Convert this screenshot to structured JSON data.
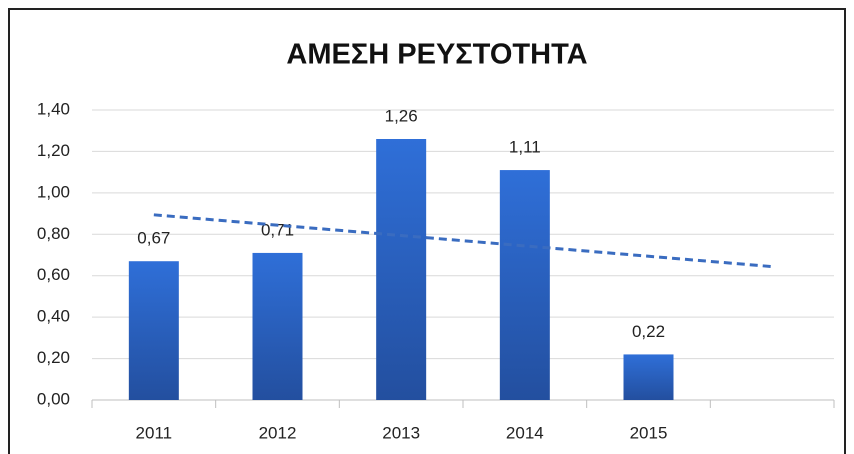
{
  "chart_data": {
    "type": "bar",
    "title": "ΑΜΕΣΗ ΡΕΥΣΤΟΤΗΤΑ",
    "categories": [
      "2011",
      "2012",
      "2013",
      "2014",
      "2015",
      null
    ],
    "values": [
      0.67,
      0.71,
      1.26,
      1.11,
      0.22,
      null
    ],
    "value_labels": [
      "0,67",
      "0,71",
      "1,26",
      "1,11",
      "0,22",
      null
    ],
    "color": "#2e6bd0",
    "trendline": {
      "type": "linear",
      "color": "#3a6cc0"
    },
    "ylim": [
      0,
      1.4
    ],
    "yticks": [
      {
        "value": 0,
        "label": "0,00"
      },
      {
        "value": 0.2,
        "label": "0,20"
      },
      {
        "value": 0.4,
        "label": "0,40"
      },
      {
        "value": 0.6,
        "label": "0,60"
      },
      {
        "value": 0.8,
        "label": "0,80"
      },
      {
        "value": 1,
        "label": "1,00"
      },
      {
        "value": 1.2,
        "label": "1,20"
      },
      {
        "value": 1.4,
        "label": "1,40"
      }
    ],
    "grid": true
  }
}
